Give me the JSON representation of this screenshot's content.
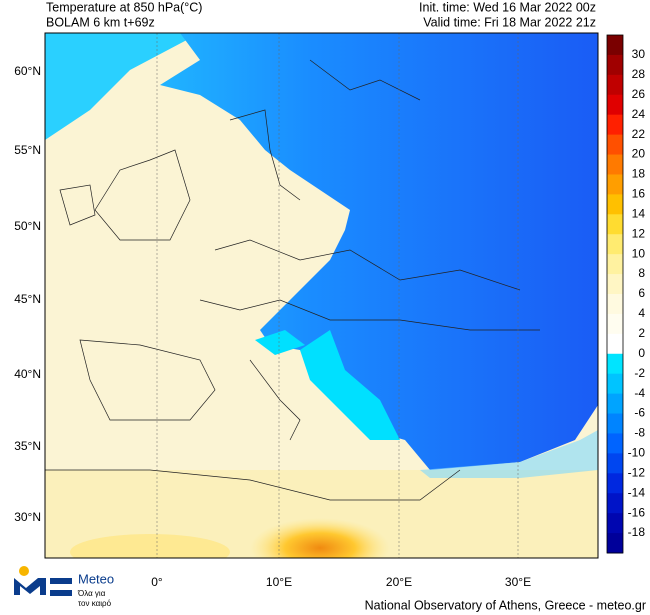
{
  "header": {
    "title": "Temperature at 850 hPa(°C)",
    "model": "BOLAM 6 km t+69z",
    "init_time": "Init. time: Wed 16 Mar 2022 00z",
    "valid_time": "Valid time: Fri 18 Mar 2022 21z"
  },
  "map": {
    "lat_labels": [
      "60°N",
      "55°N",
      "50°N",
      "45°N",
      "40°N",
      "35°N",
      "30°N"
    ],
    "lon_labels": [
      "0°",
      "10°E",
      "20°E",
      "30°E"
    ]
  },
  "colorbar": {
    "labels": [
      30,
      28,
      26,
      24,
      22,
      20,
      18,
      16,
      14,
      12,
      10,
      8,
      6,
      4,
      2,
      0,
      -2,
      -4,
      -6,
      -8,
      -10,
      -12,
      -14,
      -16,
      -18
    ],
    "colors": [
      "#7a0000",
      "#a00000",
      "#c00000",
      "#e00000",
      "#ff2000",
      "#ff5000",
      "#ff7a00",
      "#ff9e00",
      "#ffc000",
      "#ffdc30",
      "#ffeb70",
      "#fff2a0",
      "#fff6c4",
      "#fffae0",
      "#fffdf0",
      "#ffffff",
      "#00e4ff",
      "#00c4ff",
      "#00a4ff",
      "#0084ff",
      "#0064ff",
      "#0046f0",
      "#0028e0",
      "#0014c8",
      "#0006b0",
      "#00009a"
    ]
  },
  "logo": {
    "name": "Meteo",
    "tagline_1": "Όλα για",
    "tagline_2": "τον καιρό"
  },
  "footer": "National Observatory of Athens, Greece - meteo.gr"
}
